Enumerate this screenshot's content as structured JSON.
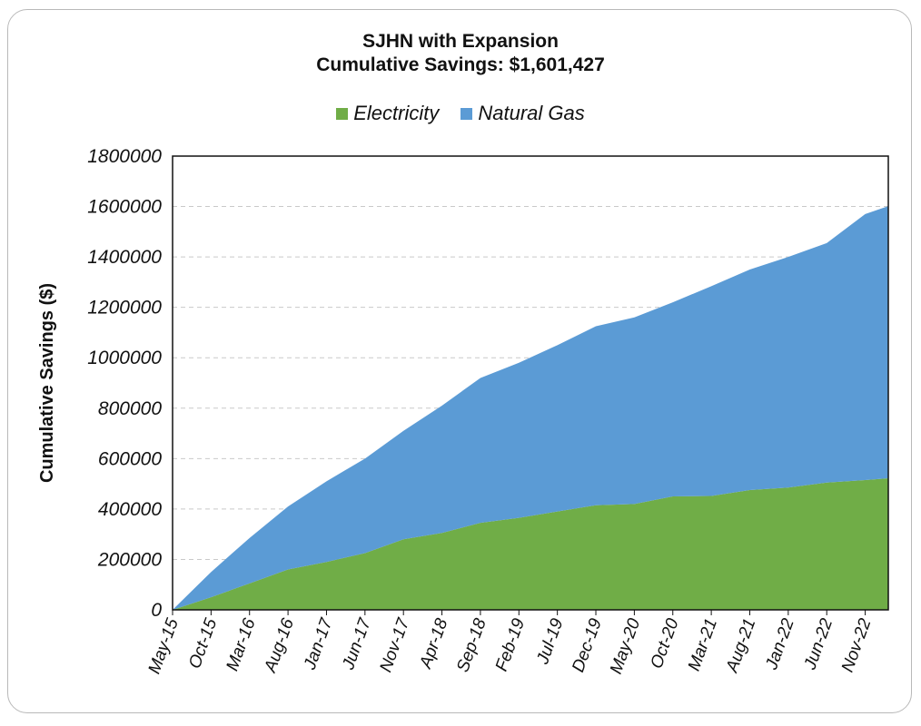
{
  "chart_data": {
    "type": "area",
    "title": "SJHN with Expansion",
    "subtitle": "Cumulative Savings: $1,601,427",
    "xlabel": "",
    "ylabel": "Cumulative Savings ($)",
    "ylim": [
      0,
      1800000
    ],
    "y_ticks": [
      0,
      200000,
      400000,
      600000,
      800000,
      1000000,
      1200000,
      1400000,
      1600000,
      1800000
    ],
    "x_tick_labels": [
      "May-15",
      "Oct-15",
      "Mar-16",
      "Aug-16",
      "Jan-17",
      "Jun-17",
      "Nov-17",
      "Apr-18",
      "Sep-18",
      "Feb-19",
      "Jul-19",
      "Dec-19",
      "May-20",
      "Oct-20",
      "Mar-21",
      "Aug-21",
      "Jan-22",
      "Jun-22",
      "Nov-22"
    ],
    "stacked": true,
    "grid": true,
    "legend_position": "top",
    "series": [
      {
        "name": "Electricity",
        "color": "#70ad47",
        "x": [
          "May-15",
          "Oct-15",
          "Mar-16",
          "Aug-16",
          "Jan-17",
          "Jun-17",
          "Nov-17",
          "Apr-18",
          "Sep-18",
          "Feb-19",
          "Jul-19",
          "Dec-19",
          "May-20",
          "Oct-20",
          "Mar-21",
          "Aug-21",
          "Jan-22",
          "Jun-22",
          "Nov-22",
          "Feb-23"
        ],
        "values": [
          0,
          50000,
          105000,
          160000,
          190000,
          225000,
          280000,
          305000,
          345000,
          365000,
          390000,
          415000,
          420000,
          450000,
          452000,
          475000,
          485000,
          505000,
          515000,
          522000
        ]
      },
      {
        "name": "Natural Gas",
        "color": "#5b9bd5",
        "x": [
          "May-15",
          "Oct-15",
          "Mar-16",
          "Aug-16",
          "Jan-17",
          "Jun-17",
          "Nov-17",
          "Apr-18",
          "Sep-18",
          "Feb-19",
          "Jul-19",
          "Dec-19",
          "May-20",
          "Oct-20",
          "Mar-21",
          "Aug-21",
          "Jan-22",
          "Jun-22",
          "Nov-22",
          "Feb-23"
        ],
        "values": [
          0,
          100000,
          180000,
          250000,
          320000,
          375000,
          430000,
          505000,
          575000,
          615000,
          660000,
          710000,
          740000,
          770000,
          832000,
          875000,
          915000,
          950000,
          1055000,
          1079427
        ]
      }
    ]
  }
}
